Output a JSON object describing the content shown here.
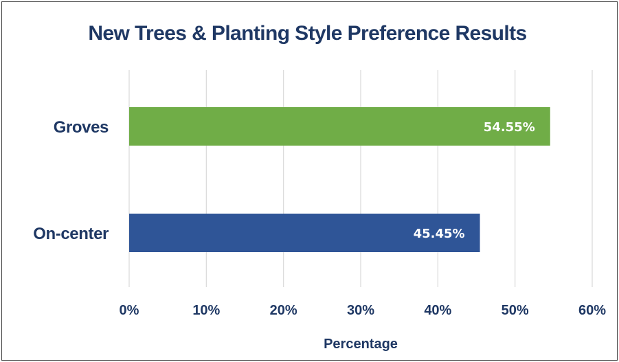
{
  "chart_data": {
    "type": "bar",
    "orientation": "horizontal",
    "title": "New Trees & Planting Style Preference Results",
    "xlabel": "Percentage",
    "ylabel": "",
    "xlim": [
      0,
      60
    ],
    "x_ticks": [
      0,
      10,
      20,
      30,
      40,
      50,
      60
    ],
    "x_tick_labels": [
      "0%",
      "10%",
      "20%",
      "30%",
      "40%",
      "50%",
      "60%"
    ],
    "grid": "vertical",
    "legend": "none",
    "categories": [
      "Groves",
      "On-center"
    ],
    "values": [
      54.55,
      45.45
    ],
    "data_labels": [
      "54.55%",
      "45.45%"
    ],
    "colors": [
      "#70ad47",
      "#2f5597"
    ],
    "title_color": "#1f3864",
    "grid_color": "#d9d9d9"
  }
}
